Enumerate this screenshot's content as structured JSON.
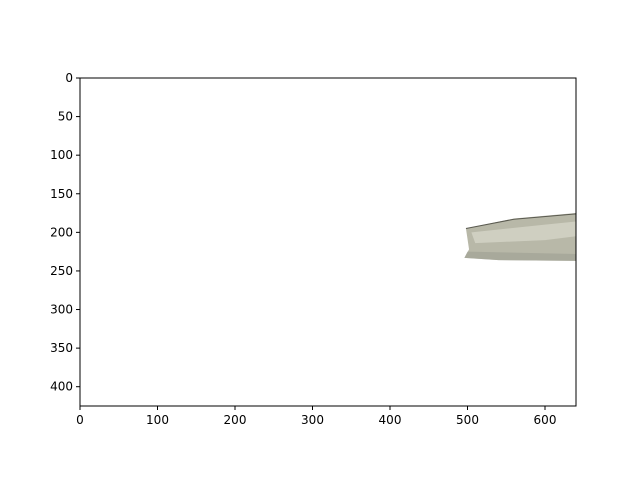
{
  "chart_data": {
    "type": "image",
    "xlim": [
      0,
      640
    ],
    "ylim": [
      425,
      0
    ],
    "y_axis_inverted": true,
    "x_ticks": [
      "0",
      "100",
      "200",
      "300",
      "400",
      "500",
      "600"
    ],
    "y_ticks": [
      "0",
      "50",
      "100",
      "150",
      "200",
      "250",
      "300",
      "350",
      "400"
    ],
    "x_tick_values": [
      0,
      100,
      200,
      300,
      400,
      500,
      600
    ],
    "y_tick_values": [
      0,
      50,
      100,
      150,
      200,
      250,
      300,
      350,
      400
    ],
    "grid": false,
    "image_object": {
      "description_name": "masked-object",
      "outline_px_data": [
        [
          498,
          195
        ],
        [
          560,
          182
        ],
        [
          640,
          175
        ],
        [
          640,
          237
        ],
        [
          540,
          236
        ],
        [
          496,
          233
        ],
        [
          502,
          222
        ]
      ],
      "colors": {
        "fill": "#b8b8a8",
        "shade": "#9c9e92",
        "highlight": "#d8d8cc"
      }
    }
  }
}
